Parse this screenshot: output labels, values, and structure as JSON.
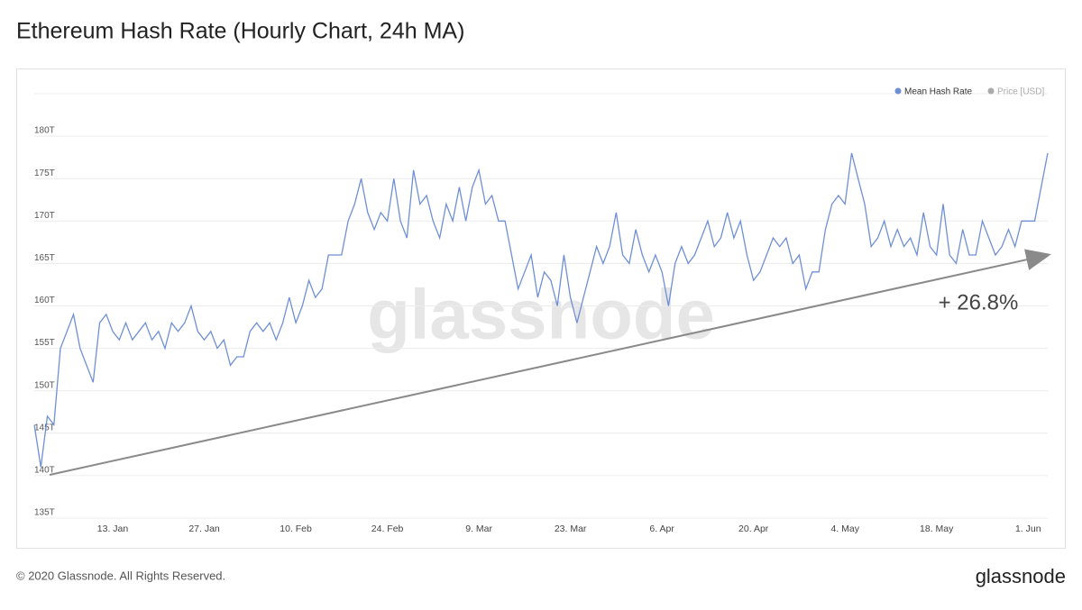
{
  "chart_data": {
    "type": "line",
    "title": "Ethereum Hash Rate (Hourly Chart, 24h MA)",
    "categories": [
      null,
      null,
      null,
      null,
      null,
      null,
      null,
      null,
      null,
      null,
      null,
      null,
      "13. Jan",
      null,
      null,
      null,
      null,
      null,
      null,
      null,
      null,
      null,
      null,
      null,
      null,
      null,
      "27. Jan",
      null,
      null,
      null,
      null,
      null,
      null,
      null,
      null,
      null,
      null,
      null,
      null,
      null,
      "10. Feb",
      null,
      null,
      null,
      null,
      null,
      null,
      null,
      null,
      null,
      null,
      null,
      null,
      null,
      "24. Feb",
      null,
      null,
      null,
      null,
      null,
      null,
      null,
      null,
      null,
      null,
      null,
      null,
      null,
      "9. Mar",
      null,
      null,
      null,
      null,
      null,
      null,
      null,
      null,
      null,
      null,
      null,
      null,
      null,
      "23. Mar",
      null,
      null,
      null,
      null,
      null,
      null,
      null,
      null,
      null,
      null,
      null,
      null,
      null,
      "6. Apr",
      null,
      null,
      null,
      null,
      null,
      null,
      null,
      null,
      null,
      null,
      null,
      null,
      null,
      "20. Apr",
      null,
      null,
      null,
      null,
      null,
      null,
      null,
      null,
      null,
      null,
      null,
      null,
      null,
      "4. May",
      null,
      null,
      null,
      null,
      null,
      null,
      null,
      null,
      null,
      null,
      null,
      null,
      null,
      "18. May",
      null,
      null,
      null,
      null,
      null,
      null,
      null,
      null,
      null,
      null,
      null,
      null,
      null,
      "1. Jun",
      null,
      null,
      null
    ],
    "series": [
      {
        "name": "Mean Hash Rate",
        "color": "#6f8fd6",
        "values": [
          146,
          141,
          147,
          146,
          155,
          157,
          159,
          155,
          153,
          151,
          158,
          159,
          157,
          156,
          158,
          156,
          157,
          158,
          156,
          157,
          155,
          158,
          157,
          158,
          160,
          157,
          156,
          157,
          155,
          156,
          153,
          154,
          154,
          157,
          158,
          157,
          158,
          156,
          158,
          161,
          158,
          160,
          163,
          161,
          162,
          166,
          166,
          166,
          170,
          172,
          175,
          171,
          169,
          171,
          170,
          175,
          170,
          168,
          176,
          172,
          173,
          170,
          168,
          172,
          170,
          174,
          170,
          174,
          176,
          172,
          173,
          170,
          170,
          166,
          162,
          164,
          166,
          161,
          164,
          163,
          160,
          166,
          161,
          158,
          161,
          164,
          167,
          165,
          167,
          171,
          166,
          165,
          169,
          166,
          164,
          166,
          164,
          160,
          165,
          167,
          165,
          166,
          168,
          170,
          167,
          168,
          171,
          168,
          170,
          166,
          163,
          164,
          166,
          168,
          167,
          168,
          165,
          166,
          162,
          164,
          164,
          169,
          172,
          173,
          172,
          178,
          175,
          172,
          167,
          168,
          170,
          167,
          169,
          167,
          168,
          166,
          171,
          167,
          166,
          172,
          166,
          165,
          169,
          166,
          166,
          170,
          168,
          166,
          167,
          169,
          167,
          170,
          170,
          170,
          174,
          178
        ]
      }
    ],
    "legend_inactive": {
      "name": "Price [USD]",
      "color": "#aaaaaa"
    },
    "ylim": [
      135,
      185
    ],
    "yticks": [
      {
        "value": 135,
        "label": "135T"
      },
      {
        "value": 140,
        "label": "140T"
      },
      {
        "value": 145,
        "label": "145T"
      },
      {
        "value": 150,
        "label": "150T"
      },
      {
        "value": 155,
        "label": "155T"
      },
      {
        "value": 160,
        "label": "160T"
      },
      {
        "value": 165,
        "label": "165T"
      },
      {
        "value": 170,
        "label": "170T"
      },
      {
        "value": 175,
        "label": "175T"
      },
      {
        "value": 180,
        "label": "180T"
      }
    ],
    "grid": true,
    "annotation": "+ 26.8%",
    "watermark": "glassnode",
    "footer": "© 2020 Glassnode. All Rights Reserved.",
    "logo": "glassnode"
  }
}
